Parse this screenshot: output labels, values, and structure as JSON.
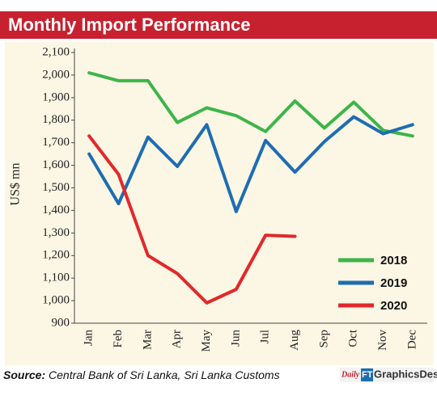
{
  "chart_data": {
    "type": "line",
    "title": "Monthly Import Performance",
    "y_label": "US$ mn",
    "categories": [
      "Jan",
      "Feb",
      "Mar",
      "Apr",
      "May",
      "Jun",
      "Jul",
      "Aug",
      "Sep",
      "Oct",
      "Nov",
      "Dec"
    ],
    "series": [
      {
        "name": "2018",
        "color": "#3db54a",
        "values": [
          2010,
          1975,
          1975,
          1790,
          1855,
          1820,
          1750,
          1885,
          1765,
          1880,
          1755,
          1730
        ]
      },
      {
        "name": "2019",
        "color": "#1e6db3",
        "values": [
          1650,
          1430,
          1725,
          1595,
          1780,
          1395,
          1710,
          1570,
          1705,
          1815,
          1740,
          1780
        ]
      },
      {
        "name": "2020",
        "color": "#e2282b",
        "values": [
          1730,
          1560,
          1200,
          1120,
          990,
          1050,
          1290,
          1285,
          null,
          null,
          null,
          null
        ]
      }
    ],
    "ylim": [
      900,
      2100
    ],
    "yticks": [
      900,
      {
        "value": 1000,
        "label": "1,000"
      },
      {
        "value": 1100,
        "label": "1,100"
      },
      {
        "value": 1200,
        "label": "1,200"
      },
      {
        "value": 1300,
        "label": "1,300"
      },
      {
        "value": 1400,
        "label": "1,400"
      },
      {
        "value": 1500,
        "label": "1,500"
      },
      {
        "value": 1600,
        "label": "1,600"
      },
      {
        "value": 1700,
        "label": "1,700"
      },
      {
        "value": 1800,
        "label": "1,800"
      },
      {
        "value": 1900,
        "label": "1,900"
      },
      {
        "value": 2000,
        "label": "2,000"
      },
      {
        "value": 2100,
        "label": "2,100"
      }
    ],
    "grid": false,
    "legend": "lower right",
    "source_label": "Source:",
    "source": "Central Bank of Sri Lanka, Sri Lanka Customs",
    "logo": [
      "Daily",
      "FT",
      "GraphicsDesk"
    ]
  }
}
